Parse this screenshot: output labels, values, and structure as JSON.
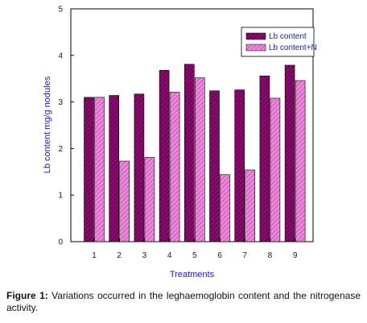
{
  "chart_data": {
    "type": "bar",
    "xlabel": "Treatments",
    "ylabel": "Lb content mg/g nodules",
    "categories": [
      "1",
      "2",
      "3",
      "4",
      "5",
      "6",
      "7",
      "8",
      "9"
    ],
    "ylim": [
      0,
      5
    ],
    "yticks": [
      0,
      1,
      2,
      3,
      4,
      5
    ],
    "series": [
      {
        "name": "Lb content",
        "values": [
          3.1,
          3.14,
          3.17,
          3.68,
          3.81,
          3.24,
          3.26,
          3.56,
          3.79
        ],
        "color": "#8b0a6f"
      },
      {
        "name": "Lb content+N",
        "values": [
          3.1,
          1.73,
          1.81,
          3.21,
          3.52,
          1.44,
          1.54,
          3.08,
          3.46
        ],
        "color": "#d94fc4"
      }
    ],
    "legend_position": "top-right",
    "grid": false
  },
  "caption": {
    "label": "Figure 1:",
    "text": "Variations occurred in the leghaemoglobin content and the nitrogenase activity."
  }
}
